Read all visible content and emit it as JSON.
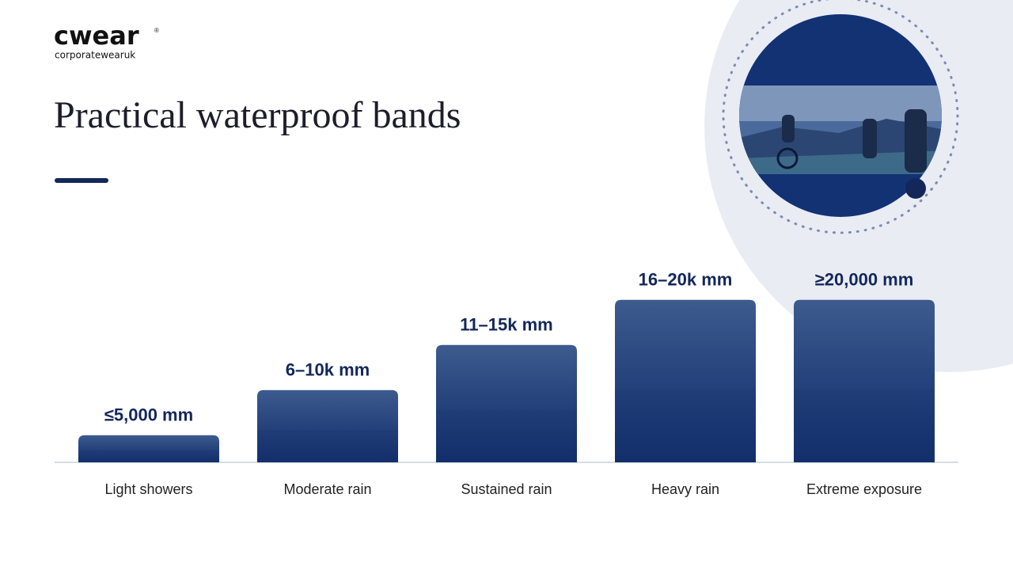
{
  "header": {
    "logo": "cwear",
    "logo_mark": "®",
    "logo_tagline": "corporatewearuk",
    "title": "Practical waterproof bands"
  },
  "chart_data": {
    "type": "bar",
    "categories": [
      "Light showers",
      "Moderate rain",
      "Sustained rain",
      "Heavy rain",
      "Extreme exposure"
    ],
    "values": [
      5000,
      10000,
      15000,
      20000,
      20000
    ],
    "value_labels": [
      "≤5,000 mm",
      "6–10k mm",
      "11–15k mm",
      "16–20k mm",
      "≥20,000 mm"
    ],
    "color": "#1c3a74",
    "ylim": [
      2000,
      22000
    ]
  }
}
